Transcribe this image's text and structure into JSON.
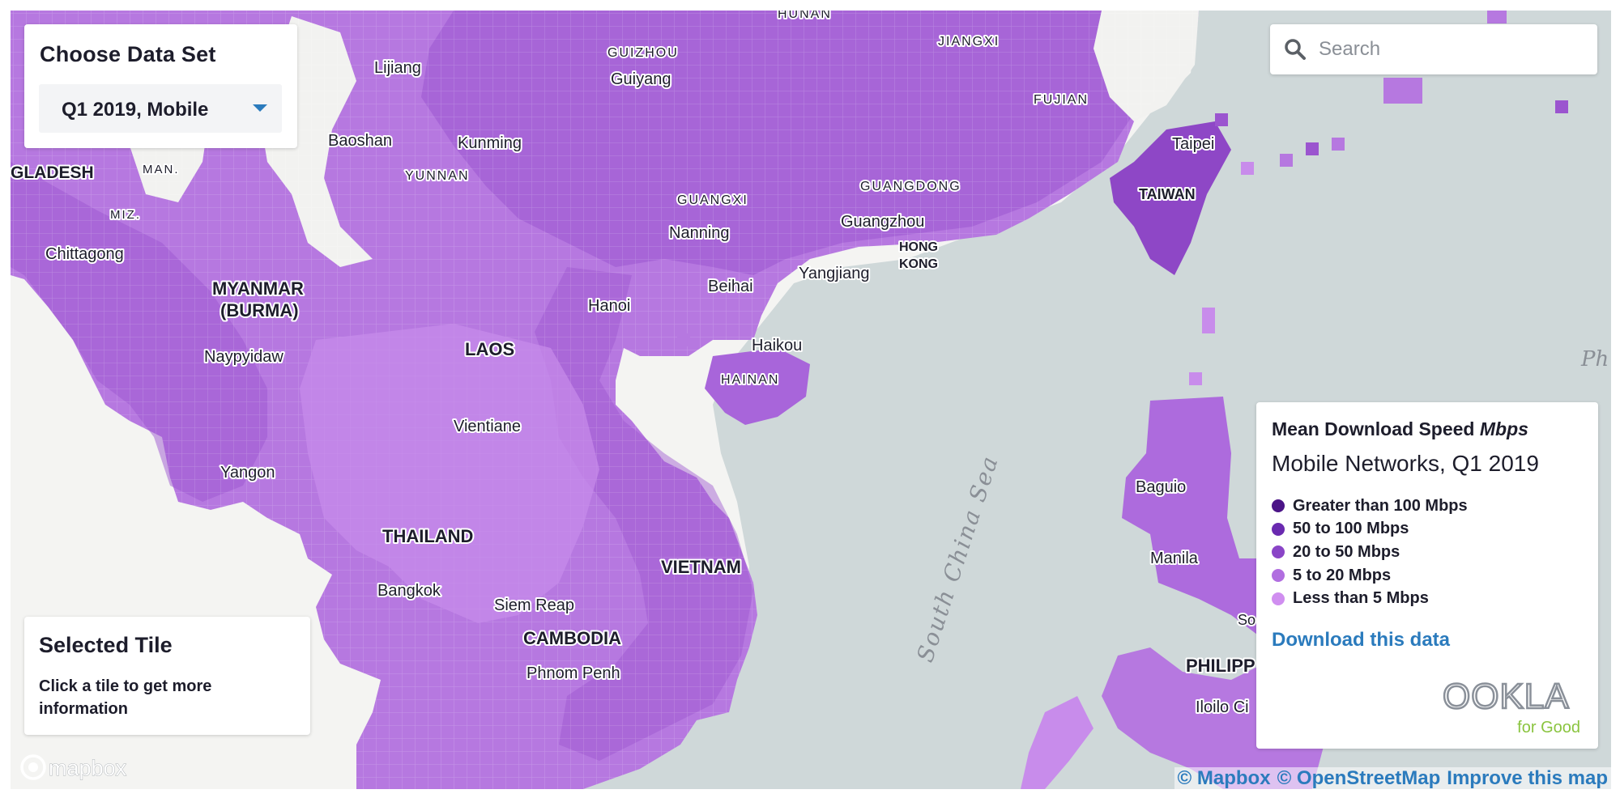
{
  "dataset": {
    "title": "Choose Data Set",
    "selected": "Q1 2019, Mobile"
  },
  "search": {
    "placeholder": "Search"
  },
  "selected_tile": {
    "title": "Selected Tile",
    "info": "Click a tile to get more information"
  },
  "legend": {
    "heading": "Mean Download Speed",
    "unit": "Mbps",
    "subtitle": "Mobile Networks, Q1 2019",
    "items": [
      {
        "label": "Greater than 100 Mbps",
        "color": "#4b1487"
      },
      {
        "label": "50 to 100 Mbps",
        "color": "#6a2ab0"
      },
      {
        "label": "20 to 50 Mbps",
        "color": "#8a45c7"
      },
      {
        "label": "5 to 20 Mbps",
        "color": "#b16ee0"
      },
      {
        "label": "Less than 5 Mbps",
        "color": "#d08ef0"
      }
    ],
    "download_link": "Download this data",
    "logo_text": "OOKLA",
    "logo_tagline": "for Good"
  },
  "map": {
    "colors": {
      "water": "#cfd8d9",
      "land": "#f4f4f2",
      "tile_light": "#c98ceb",
      "tile_mid": "#b273dc",
      "tile_dark": "#9650cc",
      "tile_darkest": "#7a37b5"
    },
    "labels": {
      "hunan": "HUNAN",
      "guizhou": "GUIZHOU",
      "jiangxi": "JIANGXI",
      "lijiang": "Lijiang",
      "guiyang": "Guiyang",
      "fujian": "FUJIAN",
      "baoshan": "Baoshan",
      "kunming": "Kunming",
      "taipei": "Taipei",
      "bangladesh": "GLADESH",
      "man": "MAN.",
      "yunnan": "YUNNAN",
      "guangxi": "GUANGXI",
      "guangdong": "GUANGDONG",
      "taiwan": "TAIWAN",
      "miz": "MIZ.",
      "nanning": "Nanning",
      "guangzhou": "Guangzhou",
      "chittagong": "Chittagong",
      "hong_kong_1": "HONG",
      "hong_kong_2": "KONG",
      "myanmar_1": "MYANMAR",
      "myanmar_2": "(BURMA)",
      "beihai": "Beihai",
      "yangjiang": "Yangjiang",
      "hanoi": "Hanoi",
      "laos": "LAOS",
      "haikou": "Haikou",
      "naypyidaw": "Naypyidaw",
      "hainan": "HAINAN",
      "ph": "Ph",
      "vientiane": "Vientiane",
      "south_china_sea": "South China Sea",
      "yangon": "Yangon",
      "baguio": "Baguio",
      "thailand": "THAILAND",
      "vietnam": "VIETNAM",
      "manila": "Manila",
      "bangkok": "Bangkok",
      "siem_reap": "Siem Reap",
      "so": "So",
      "cambodia": "CAMBODIA",
      "philippines": "PHILIPP",
      "phnom_penh": "Phnom Penh",
      "iloilo": "Iloilo Ci"
    }
  },
  "attribution": {
    "mapbox": "© Mapbox",
    "osm": "© OpenStreetMap",
    "improve": "Improve this map"
  },
  "mapbox_logo": "mapbox"
}
